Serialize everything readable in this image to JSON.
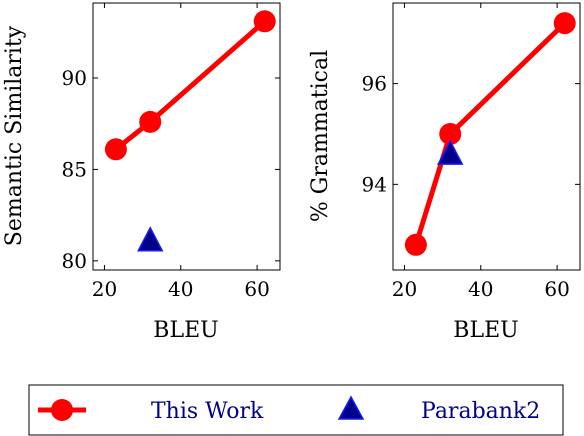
{
  "chart_data": [
    {
      "type": "line",
      "title": "",
      "xlabel": "BLEU",
      "ylabel": "Semantic Similarity",
      "xlim": [
        17,
        66
      ],
      "ylim": [
        79.5,
        94.1
      ],
      "xticks": [
        20,
        40,
        60
      ],
      "yticks": [
        80,
        85,
        90
      ],
      "grid": false,
      "series": [
        {
          "name": "This Work",
          "marker": "circle",
          "color": "#ff0000",
          "line": true,
          "x": [
            23,
            32,
            62
          ],
          "y": [
            86.1,
            87.6,
            93.1
          ]
        },
        {
          "name": "Parabank2",
          "marker": "triangle",
          "color": "#00008b",
          "line": false,
          "x": [
            32
          ],
          "y": [
            81.1
          ]
        }
      ]
    },
    {
      "type": "line",
      "title": "",
      "xlabel": "BLEU",
      "ylabel": "% Grammatical",
      "xlim": [
        17,
        66
      ],
      "ylim": [
        92.3,
        97.6
      ],
      "xticks": [
        20,
        40,
        60
      ],
      "yticks": [
        94,
        96
      ],
      "grid": false,
      "series": [
        {
          "name": "This Work",
          "marker": "circle",
          "color": "#ff0000",
          "line": true,
          "x": [
            23,
            32,
            62
          ],
          "y": [
            92.8,
            95.0,
            97.2
          ]
        },
        {
          "name": "Parabank2",
          "marker": "triangle",
          "color": "#00008b",
          "line": false,
          "x": [
            32
          ],
          "y": [
            94.6
          ]
        }
      ]
    }
  ],
  "legend": {
    "placement": "bottom",
    "text_color": "#00008b",
    "items": [
      {
        "label": "This Work",
        "marker": "circle",
        "color": "#ff0000"
      },
      {
        "label": "Parabank2",
        "marker": "triangle",
        "color": "#00008b"
      }
    ]
  }
}
